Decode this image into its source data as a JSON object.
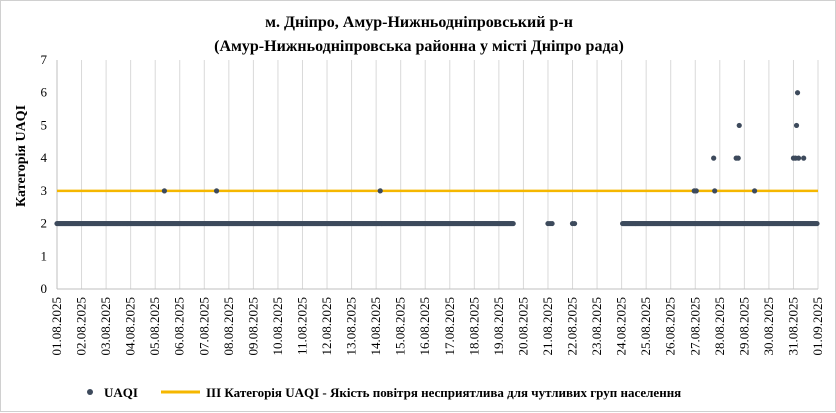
{
  "chart_data": {
    "type": "scatter",
    "title_lines": [
      "м. Дніпро, Амур-Нижньодніпровський р-н",
      "(Амур-Нижньодніпровська районна у місті Дніпро рада)"
    ],
    "ylabel": "Категорія UAQI",
    "xlabel": "",
    "ylim": [
      0,
      7
    ],
    "yticks": [
      0,
      1,
      2,
      3,
      4,
      5,
      6,
      7
    ],
    "xlim_days": [
      1,
      32
    ],
    "xtick_labels": [
      "01.08.2025",
      "02.08.2025",
      "03.08.2025",
      "04.08.2025",
      "05.08.2025",
      "06.08.2025",
      "07.08.2025",
      "08.08.2025",
      "09.08.2025",
      "10.08.2025",
      "11.08.2025",
      "12.08.2025",
      "13.08.2025",
      "14.08.2025",
      "15.08.2025",
      "16.08.2025",
      "17.08.2025",
      "18.08.2025",
      "19.08.2025",
      "20.08.2025",
      "21.08.2025",
      "22.08.2025",
      "23.08.2025",
      "24.08.2025",
      "25.08.2025",
      "26.08.2025",
      "27.08.2025",
      "28.08.2025",
      "29.08.2025",
      "30.08.2025",
      "31.08.2025",
      "01.09.2025"
    ],
    "grid": "vertical",
    "legend_position": "bottom",
    "colors": {
      "uaqi": "#3d4a5c",
      "threshold": "#f5b700",
      "grid": "#d9d9d9",
      "axis": "#bfbfbf"
    },
    "series": [
      {
        "name": "UAQI",
        "kind": "points",
        "dense_runs": [
          {
            "x_start": "01.08.2025 00:00",
            "x_end": "19.08.2025 14:00",
            "y": 2
          },
          {
            "x_start": "24.08.2025 01:00",
            "x_end": "31.08.2025 23:00",
            "y": 2
          }
        ],
        "points": [
          [
            "05.08.2025 09:00",
            3
          ],
          [
            "07.08.2025 12:00",
            3
          ],
          [
            "14.08.2025 04:00",
            3
          ],
          [
            "21.08.2025 00:00",
            2
          ],
          [
            "21.08.2025 02:00",
            2
          ],
          [
            "21.08.2025 04:00",
            2
          ],
          [
            "22.08.2025 00:00",
            2
          ],
          [
            "22.08.2025 02:00",
            2
          ],
          [
            "26.08.2025 23:00",
            3
          ],
          [
            "27.08.2025 01:00",
            3
          ],
          [
            "27.08.2025 18:00",
            4
          ],
          [
            "27.08.2025 19:00",
            3
          ],
          [
            "28.08.2025 16:00",
            4
          ],
          [
            "28.08.2025 18:00",
            4
          ],
          [
            "28.08.2025 19:00",
            5
          ],
          [
            "29.08.2025 10:00",
            3
          ],
          [
            "31.08.2025 00:00",
            4
          ],
          [
            "31.08.2025 02:00",
            4
          ],
          [
            "31.08.2025 03:00",
            5
          ],
          [
            "31.08.2025 04:00",
            6
          ],
          [
            "31.08.2025 05:00",
            4
          ],
          [
            "31.08.2025 10:00",
            4
          ]
        ]
      },
      {
        "name": "III Категорія UAQI - Якість повітря несприятлива для чутливих груп населення",
        "kind": "line",
        "y": 3
      }
    ]
  }
}
